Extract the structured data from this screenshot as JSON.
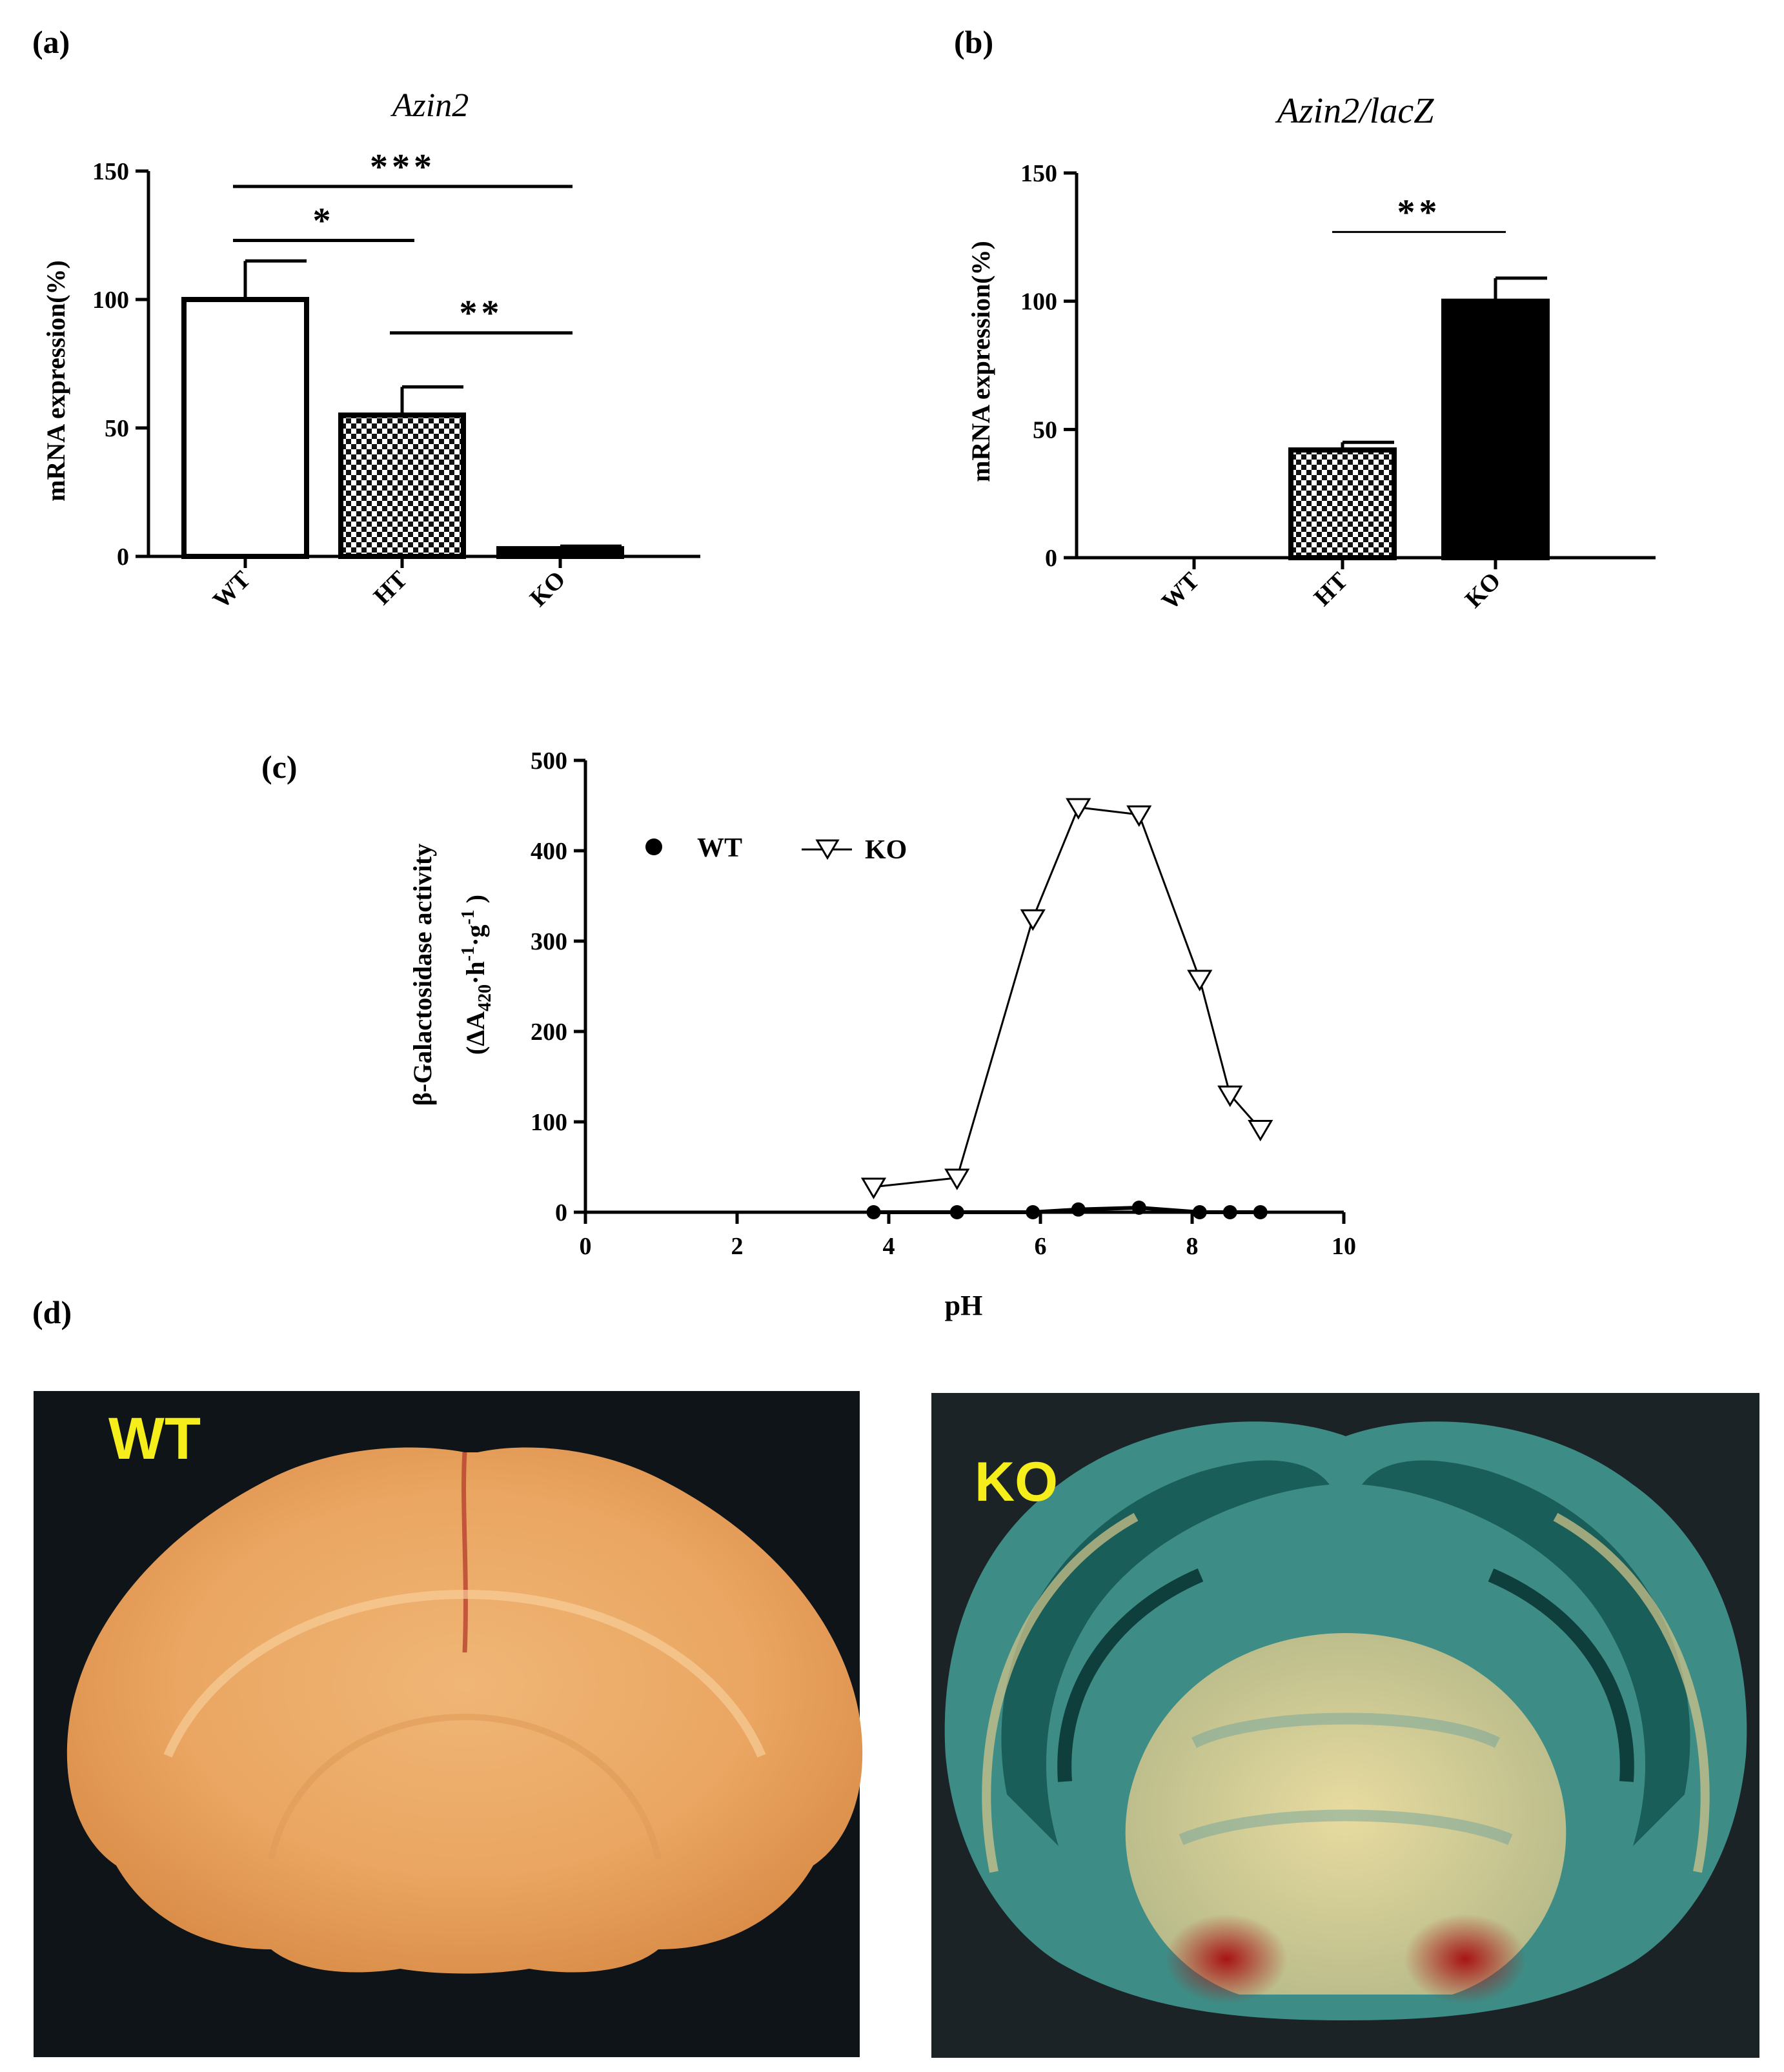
{
  "chart_data": [
    {
      "panel": "(a)",
      "type": "bar",
      "title": "Azin2",
      "ylabel": "mRNA expression(%)",
      "xlabel": "",
      "categories": [
        "WT",
        "HT",
        "KO"
      ],
      "values": [
        100,
        55,
        3
      ],
      "errors": [
        15,
        11,
        1
      ],
      "fills": [
        "white",
        "checker",
        "black"
      ],
      "ylim": [
        0,
        150
      ],
      "yticks": [
        "0",
        "50",
        "100",
        "150"
      ],
      "significance": [
        {
          "from": 0,
          "to": 2,
          "label": "***",
          "y": 144
        },
        {
          "from": 0,
          "to": 1,
          "label": "*",
          "y": 123
        },
        {
          "from": 1,
          "to": 2,
          "label": "**",
          "y": 87
        }
      ]
    },
    {
      "panel": "(b)",
      "type": "bar",
      "title": "Azin2/lacZ",
      "ylabel": "mRNA expression(%)",
      "xlabel": "",
      "categories": [
        "WT",
        "HT",
        "KO"
      ],
      "values": [
        0,
        42,
        100
      ],
      "errors": [
        0,
        3,
        9
      ],
      "fills": [
        "white",
        "checker",
        "black"
      ],
      "ylim": [
        0,
        150
      ],
      "yticks": [
        "0",
        "50",
        "100",
        "150"
      ],
      "significance": [
        {
          "from": 1,
          "to": 2,
          "label": "**",
          "y": 127
        }
      ]
    },
    {
      "panel": "(c)",
      "type": "line",
      "title": "",
      "xlabel": "pH",
      "ylabel_line1": "β-Galactosidase activity",
      "ylabel_line2": "(ΔA420·h-1·g-1)",
      "xlim": [
        0,
        10
      ],
      "ylim": [
        0,
        500
      ],
      "xticks": [
        "0",
        "2",
        "4",
        "6",
        "8",
        "10"
      ],
      "yticks": [
        "0",
        "100",
        "200",
        "300",
        "400",
        "500"
      ],
      "legend_position": "top-left",
      "series": [
        {
          "name": "WT",
          "marker": "filled-circle",
          "x": [
            3.8,
            4.9,
            5.9,
            6.5,
            7.3,
            8.1,
            8.5,
            8.9
          ],
          "y": [
            0,
            0,
            0,
            3,
            5,
            0,
            0,
            0
          ]
        },
        {
          "name": "KO",
          "marker": "open-triangle-down",
          "x": [
            3.8,
            4.9,
            5.9,
            6.5,
            7.3,
            8.1,
            8.5,
            8.9
          ],
          "y": [
            28,
            38,
            325,
            448,
            440,
            258,
            130,
            92
          ]
        }
      ]
    }
  ],
  "panel_d": {
    "panel": "(d)",
    "photos": [
      {
        "label": "WT"
      },
      {
        "label": "KO"
      }
    ]
  }
}
